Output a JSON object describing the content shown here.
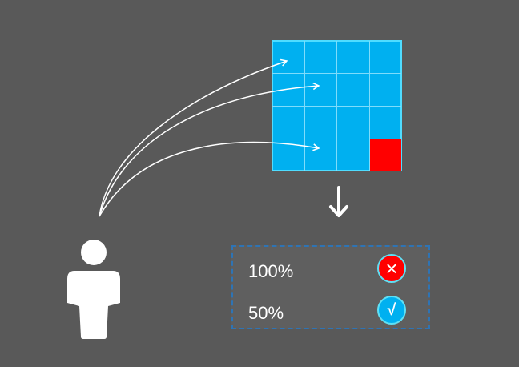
{
  "colors": {
    "background": "#595959",
    "grid_fill": "#00b0f0",
    "grid_lines": "#7fdcfb",
    "grid_border": "#4fdcff",
    "highlight_cell": "#ff0000",
    "panel_border": "#2e74b5",
    "wrong_badge": "#ff0000",
    "right_badge": "#00b0f0",
    "foreground": "#ffffff"
  },
  "grid": {
    "rows": 4,
    "cols": 4,
    "highlighted_cell": {
      "row": 4,
      "col": 4
    }
  },
  "icons": {
    "person": "person-icon",
    "down_arrow": "arrow-down-icon",
    "wrong": "cross-icon",
    "right": "check-icon"
  },
  "results": [
    {
      "value": "100%",
      "status": "wrong",
      "symbol": "×"
    },
    {
      "value": "50%",
      "status": "right",
      "symbol": "√"
    }
  ]
}
